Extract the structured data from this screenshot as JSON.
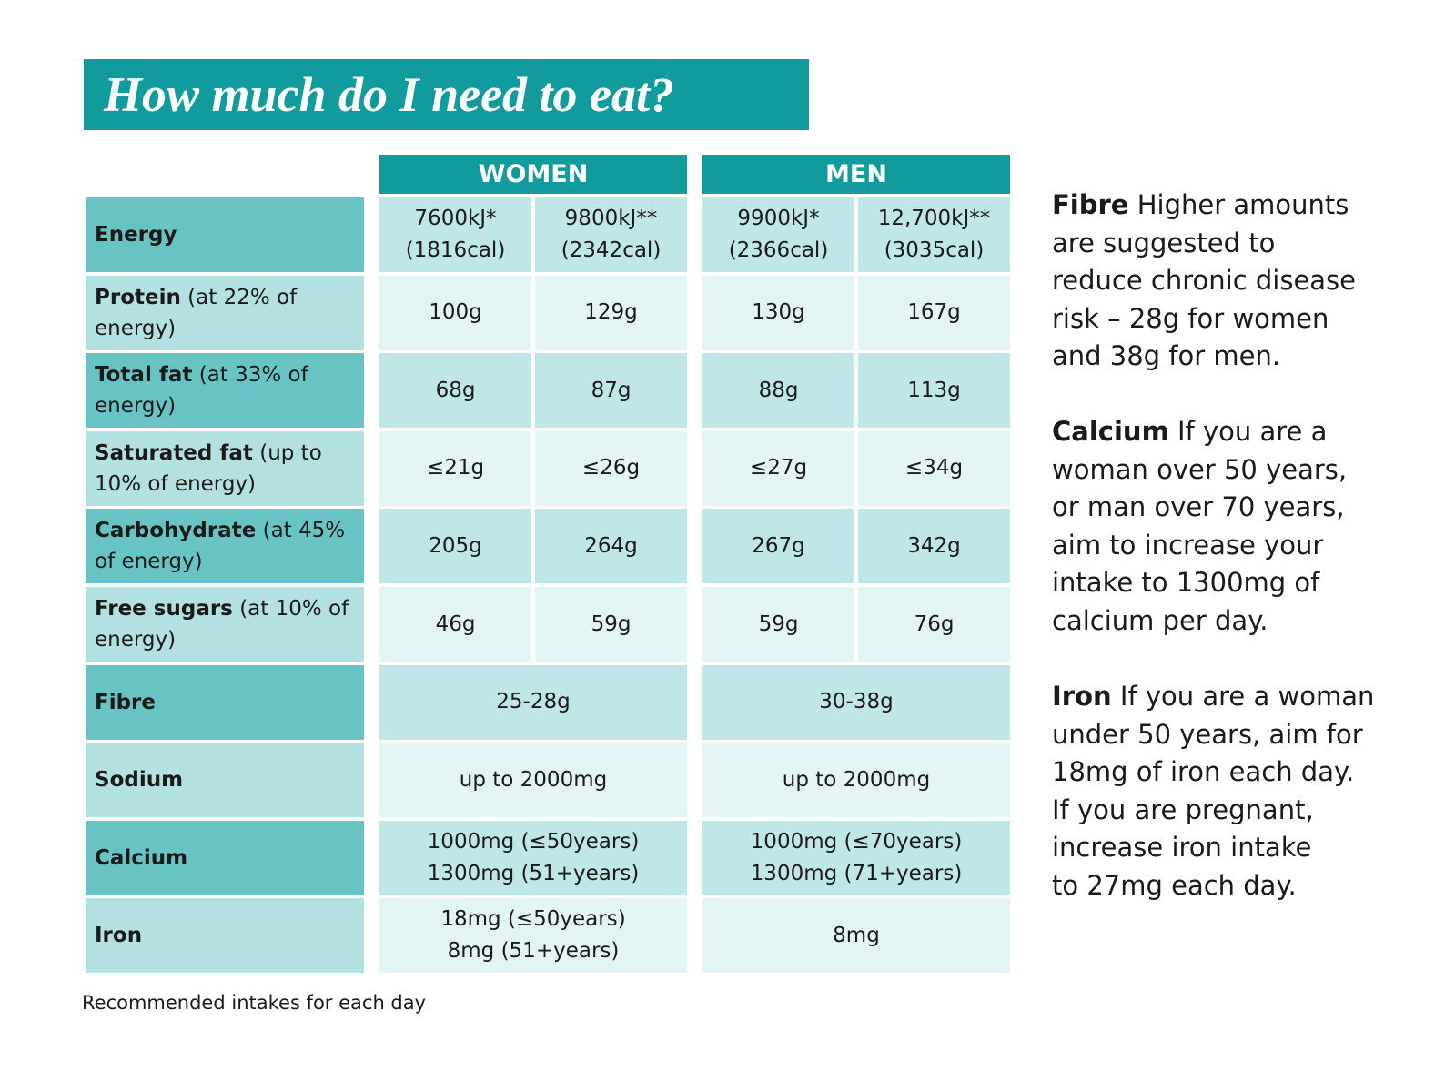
{
  "title": "How much do I need to eat?",
  "table": {
    "headers": [
      "WOMEN",
      "MEN"
    ],
    "rows": [
      {
        "label": "Energy",
        "cells": [
          [
            "7600kJ*",
            "(1816cal)"
          ],
          [
            "9800kJ**",
            "(2342cal)"
          ],
          [
            "9900kJ*",
            "(2366cal)"
          ],
          [
            "12,700kJ**",
            "(3035cal)"
          ]
        ]
      },
      {
        "label": "Protein",
        "note": "(at 22% of energy)",
        "cells": [
          [
            "100g"
          ],
          [
            "129g"
          ],
          [
            "130g"
          ],
          [
            "167g"
          ]
        ]
      },
      {
        "label": "Total fat",
        "note": "(at 33% of energy)",
        "cells": [
          [
            "68g"
          ],
          [
            "87g"
          ],
          [
            "88g"
          ],
          [
            "113g"
          ]
        ]
      },
      {
        "label": "Saturated fat",
        "note": "(up to 10% of energy)",
        "cells": [
          [
            "≤21g"
          ],
          [
            "≤26g"
          ],
          [
            "≤27g"
          ],
          [
            "≤34g"
          ]
        ]
      },
      {
        "label": "Carbohydrate",
        "note": "(at 45% of energy)",
        "cells": [
          [
            "205g"
          ],
          [
            "264g"
          ],
          [
            "267g"
          ],
          [
            "342g"
          ]
        ]
      },
      {
        "label": "Free sugars",
        "note": "(at 10% of energy)",
        "cells": [
          [
            "46g"
          ],
          [
            "59g"
          ],
          [
            "59g"
          ],
          [
            "76g"
          ]
        ]
      },
      {
        "label": "Fibre",
        "cells": [
          [
            "25-28g"
          ],
          [
            "30-38g"
          ]
        ]
      },
      {
        "label": "Sodium",
        "cells": [
          [
            "up to 2000mg"
          ],
          [
            "up to 2000mg"
          ]
        ]
      },
      {
        "label": "Calcium",
        "cells": [
          [
            "1000mg (≤50years)",
            "1300mg (51+years)"
          ],
          [
            "1000mg (≤70years)",
            "1300mg (71+years)"
          ]
        ]
      },
      {
        "label": "Iron",
        "cells": [
          [
            "18mg (≤50years)",
            "8mg (51+years)"
          ],
          [
            "8mg"
          ]
        ]
      }
    ]
  },
  "notes": [
    {
      "heading": "Fibre",
      "lines": [
        "Higher amounts",
        "are suggested to",
        "reduce chronic disease",
        "risk – 28g for women",
        "and 38g for men."
      ]
    },
    {
      "heading": "Calcium",
      "lines": [
        "If you are a",
        "woman over 50 years,",
        "or man over 70 years,",
        "aim to increase your",
        "intake to 1300mg of",
        "calcium per day."
      ]
    },
    {
      "heading": "Iron",
      "lines": [
        "If you are a woman",
        "under 50 years, aim for",
        "18mg of iron each day.",
        "If you are pregnant,",
        "increase iron intake",
        "to 27mg each day."
      ]
    }
  ],
  "caption": "Recommended intakes for each day"
}
